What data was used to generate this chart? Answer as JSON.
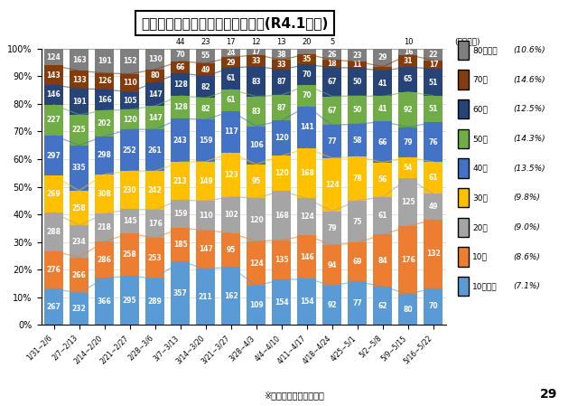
{
  "title": "市内新規陽性者（年代別）の推移(R4.1以降)",
  "categories": [
    "1/31∼2/6",
    "2/7∼2/13",
    "2/14∼2/20",
    "2/21∼2/27",
    "2/28∼3/6",
    "3/7∼3/13",
    "3/14∼3/20",
    "3/21∼3/27",
    "3/28∼4/3",
    "4/4∼4/10",
    "4/11∼4/17",
    "4/18∼4/24",
    "4/25∼5/1",
    "5/2∼5/8",
    "5/9∼5/15",
    "5/16∼5/22"
  ],
  "series": {
    "10歳未満": [
      267,
      232,
      366,
      295,
      289,
      357,
      211,
      162,
      109,
      154,
      154,
      92,
      77,
      62,
      80,
      70
    ],
    "10代": [
      276,
      266,
      286,
      258,
      253,
      185,
      147,
      95,
      124,
      135,
      146,
      94,
      69,
      84,
      176,
      132
    ],
    "20代": [
      288,
      234,
      218,
      145,
      176,
      159,
      110,
      102,
      120,
      168,
      124,
      79,
      75,
      61,
      125,
      49
    ],
    "30代": [
      269,
      258,
      308,
      230,
      242,
      213,
      149,
      123,
      95,
      120,
      168,
      124,
      78,
      56,
      54,
      61
    ],
    "40代": [
      297,
      335,
      298,
      252,
      261,
      243,
      159,
      117,
      106,
      120,
      141,
      77,
      58,
      66,
      79,
      76
    ],
    "50代": [
      227,
      225,
      202,
      120,
      147,
      128,
      82,
      61,
      83,
      87,
      70,
      67,
      50,
      41,
      92,
      51
    ],
    "60代": [
      146,
      191,
      166,
      105,
      147,
      128,
      82,
      61,
      83,
      87,
      70,
      67,
      50,
      41,
      65,
      51
    ],
    "70代": [
      143,
      133,
      126,
      110,
      80,
      66,
      49,
      29,
      33,
      33,
      35,
      18,
      11,
      7,
      31,
      17
    ],
    "80代以上": [
      124,
      163,
      191,
      152,
      130,
      70,
      55,
      24,
      17,
      38,
      18,
      26,
      23,
      29,
      16,
      22
    ]
  },
  "extra_top": [
    0,
    0,
    0,
    0,
    0,
    44,
    23,
    17,
    12,
    13,
    20,
    5,
    0,
    0,
    10,
    0
  ],
  "age_order": [
    "10歳未満",
    "10代",
    "20代",
    "30代",
    "40代",
    "50代",
    "60代",
    "70代",
    "80代以上"
  ],
  "bar_colors": {
    "10歳未満": "#4472C4",
    "10代": "#ED7D31",
    "20代": "#A5A5A5",
    "30代": "#FFC000",
    "40代": "#4472C4",
    "50代": "#70AD47",
    "60代": "#264478",
    "70代": "#843C0C",
    "80代以上": "#7F7F7F"
  },
  "legend_order": [
    "80代以上",
    "70代",
    "60代",
    "50代",
    "40代",
    "30代",
    "20代",
    "10代",
    "10歳未満"
  ],
  "legend_pcts": [
    "(10.6%)",
    "(14.6%)",
    "(12.5%)",
    "(14.3%)",
    "(13.5%)",
    "(9.8%)",
    "(9.0%)",
    "(8.6%)",
    "(7.1%)"
  ],
  "note": "※グラフ中の数値は人数",
  "page": "29",
  "ylabel": "(人口割合)"
}
